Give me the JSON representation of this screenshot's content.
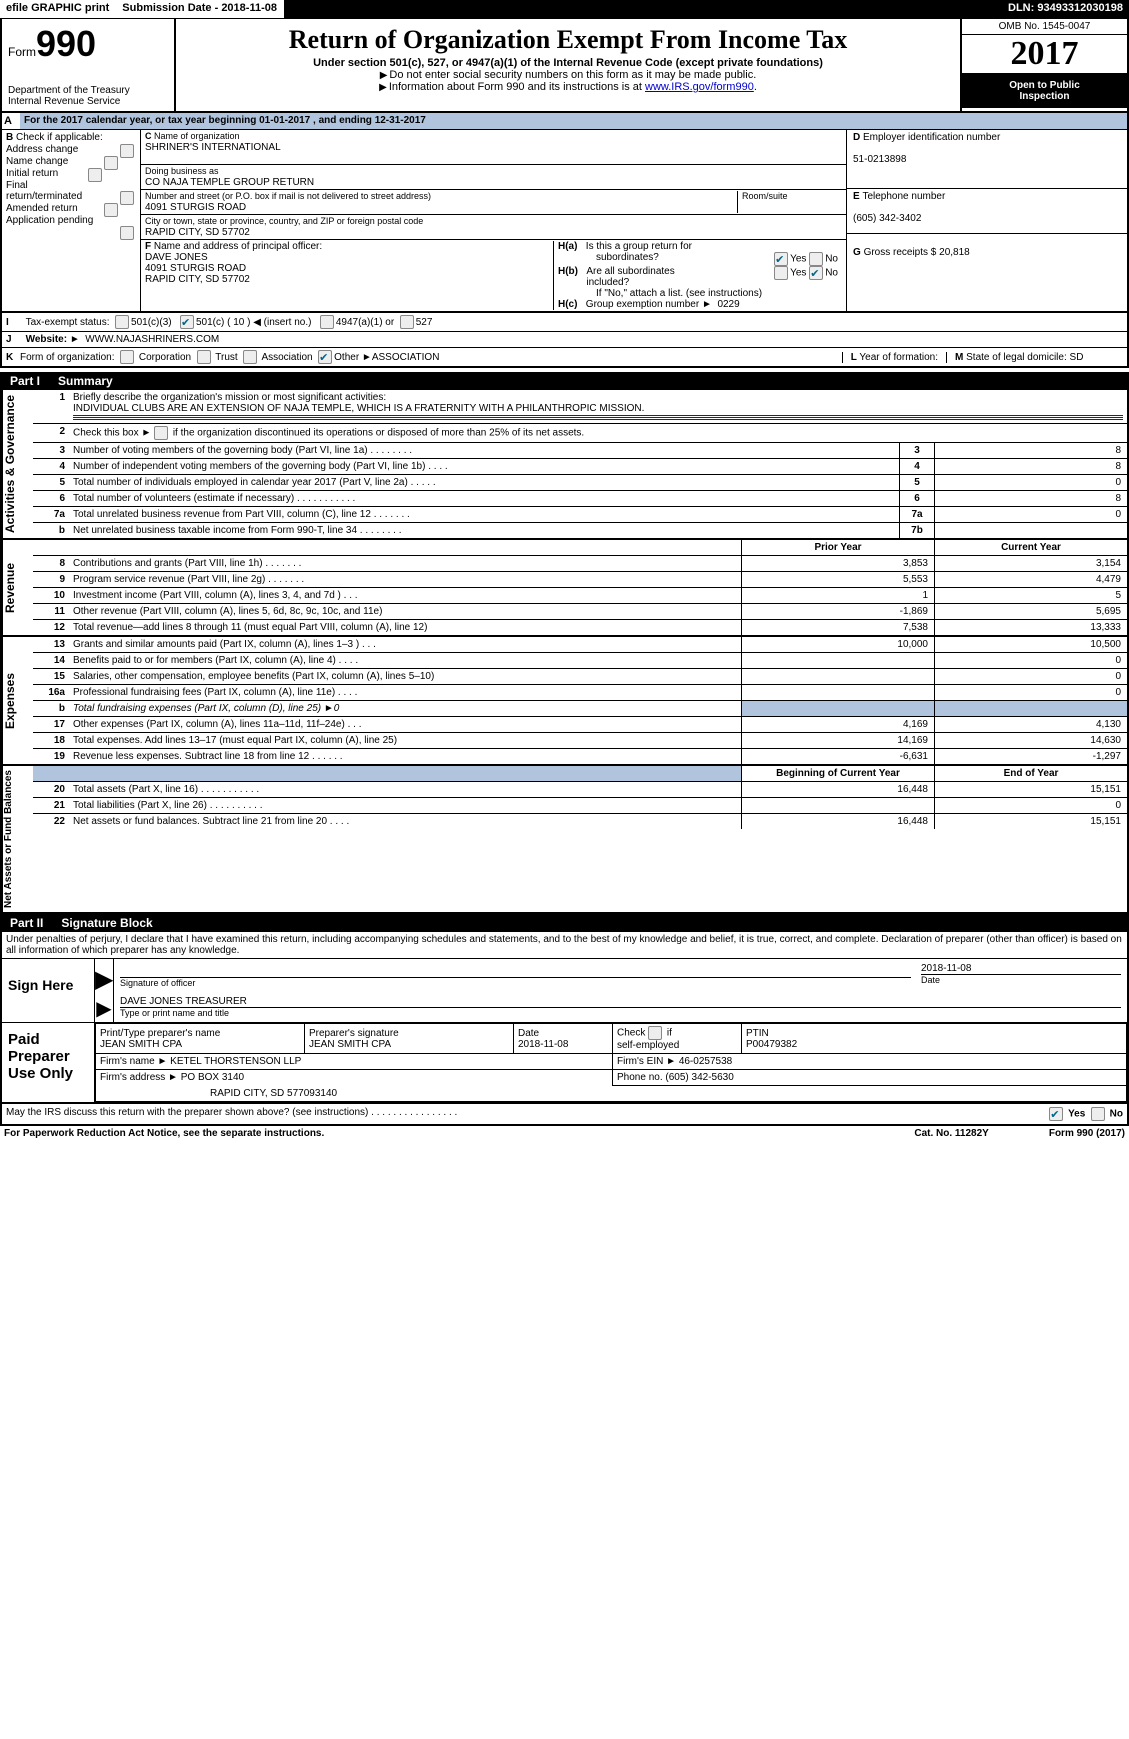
{
  "top_bar": {
    "efile": "efile GRAPHIC print",
    "submission_label": "Submission Date - 2018-11-08",
    "dln": "DLN: 93493312030198"
  },
  "header": {
    "form_word": "Form",
    "form_num": "990",
    "dept1": "Department of the Treasury",
    "dept2": "Internal Revenue Service",
    "title": "Return of Organization Exempt From Income Tax",
    "subtitle": "Under section 501(c), 527, or 4947(a)(1) of the Internal Revenue Code (except private foundations)",
    "note1": "Do not enter social security numbers on this form as it may be made public.",
    "note2_pre": "Information about Form 990 and its instructions is at ",
    "note2_link": "www.IRS.gov/form990",
    "omb": "OMB No. 1545-0047",
    "year": "2017",
    "open1": "Open to Public",
    "open2": "Inspection"
  },
  "line_A": "For the 2017 calendar year, or tax year beginning 01-01-2017        , and ending 12-31-2017",
  "section_B": {
    "title": "Check if applicable:",
    "opts": [
      "Address change",
      "Name change",
      "Initial return",
      "Final return/terminated",
      "Amended return",
      "Application pending"
    ]
  },
  "section_C": {
    "label_name": "Name of organization",
    "name": "SHRINER'S INTERNATIONAL",
    "dba_label": "Doing business as",
    "dba": "CO NAJA TEMPLE GROUP RETURN",
    "street_label": "Number and street (or P.O. box if mail is not delivered to street address)",
    "room_label": "Room/suite",
    "street": "4091 STURGIS ROAD",
    "city_label": "City or town, state or province, country, and ZIP or foreign postal code",
    "city": "RAPID CITY, SD   57702"
  },
  "section_D": {
    "label": "Employer identification number",
    "value": "51-0213898"
  },
  "section_E": {
    "label": "Telephone number",
    "value": "(605) 342-3402"
  },
  "section_G": {
    "label": "Gross receipts $",
    "value": "20,818"
  },
  "section_F": {
    "label": "Name and address of principal officer:",
    "l1": "DAVE JONES",
    "l2": "4091 STURGIS ROAD",
    "l3": "RAPID CITY, SD   57702"
  },
  "section_H": {
    "a_label": "H(a)",
    "a_text": "Is this a group return for",
    "a_text2": "subordinates?",
    "a_yes": "Yes",
    "a_no": "No",
    "b_label": "H(b)",
    "b_text": "Are all subordinates included?",
    "b_yes": "Yes",
    "b_no": "No",
    "b_note": "If \"No,\" attach a list. (see instructions)",
    "c_label": "H(c)",
    "c_text": "Group exemption number ►",
    "c_val": "0229"
  },
  "row_I": {
    "label": "Tax-exempt status:",
    "opt1": "501(c)(3)",
    "opt2": "501(c) ( 10 ) ◀ (insert no.)",
    "opt3": "4947(a)(1) or",
    "opt4": "527"
  },
  "row_J": {
    "label": "Website: ►",
    "value": "WWW.NAJASHRINERS.COM"
  },
  "row_K": {
    "label": "Form of organization:",
    "opts": [
      "Corporation",
      "Trust",
      "Association"
    ],
    "other": "Other ►",
    "other_v": "ASSOCIATION",
    "L": "Year of formation:",
    "L_v": "",
    "M": "State of legal domicile:",
    "M_v": "SD"
  },
  "part1": {
    "tab": "Part I",
    "title": "Summary"
  },
  "gov": {
    "tab": "Activities & Governance",
    "l1": "Briefly describe the organization's mission or most significant activities:",
    "l1v": "INDIVIDUAL CLUBS ARE AN EXTENSION OF NAJA TEMPLE, WHICH IS A FRATERNITY WITH A PHILANTHROPIC MISSION.",
    "l2": "Check this box ►        if the organization discontinued its operations or disposed of more than 25% of its net assets.",
    "l3": "Number of voting members of the governing body (Part VI, line 1a)   .    .    .    .    .    .    .    .",
    "n3": "3",
    "v3": "8",
    "l4": "Number of independent voting members of the governing body (Part VI, line 1b)    .    .    .    .",
    "n4": "4",
    "v4": "8",
    "l5": "Total number of individuals employed in calendar year 2017 (Part V, line 2a)    .    .    .    .    .",
    "n5": "5",
    "v5": "0",
    "l6": "Total number of volunteers (estimate if necessary)    .    .    .    .    .    .    .    .    .    .    .",
    "n6": "6",
    "v6": "8",
    "l7a": "Total unrelated business revenue from Part VIII, column (C), line 12    .    .    .    .    .    .    .",
    "n7a": "7a",
    "v7a": "0",
    "l7b": "Net unrelated business taxable income from Form 990-T, line 34   .    .    .    .    .    .    .    .",
    "n7b": "7b",
    "v7b": ""
  },
  "rev": {
    "tab": "Revenue",
    "head_prior": "Prior Year",
    "head_curr": "Current Year",
    "rows": [
      {
        "n": "8",
        "d": "Contributions and grants (Part VIII, line 1h)   .    .    .    .    .    .    .",
        "p": "3,853",
        "c": "3,154"
      },
      {
        "n": "9",
        "d": "Program service revenue (Part VIII, line 2g)   .    .    .    .    .    .    .",
        "p": "5,553",
        "c": "4,479"
      },
      {
        "n": "10",
        "d": "Investment income (Part VIII, column (A), lines 3, 4, and 7d )    .    .    .",
        "p": "1",
        "c": "5"
      },
      {
        "n": "11",
        "d": "Other revenue (Part VIII, column (A), lines 5, 6d, 8c, 9c, 10c, and 11e)",
        "p": "-1,869",
        "c": "5,695"
      },
      {
        "n": "12",
        "d": "Total revenue—add lines 8 through 11 (must equal Part VIII, column (A), line 12)",
        "p": "7,538",
        "c": "13,333"
      }
    ]
  },
  "exp": {
    "tab": "Expenses",
    "rows": [
      {
        "n": "13",
        "d": "Grants and similar amounts paid (Part IX, column (A), lines 1–3 )    .    .    .",
        "p": "10,000",
        "c": "10,500"
      },
      {
        "n": "14",
        "d": "Benefits paid to or for members (Part IX, column (A), line 4)   .    .    .    .",
        "p": "",
        "c": "0"
      },
      {
        "n": "15",
        "d": "Salaries, other compensation, employee benefits (Part IX, column (A), lines 5–10)",
        "p": "",
        "c": "0"
      },
      {
        "n": "16a",
        "d": "Professional fundraising fees (Part IX, column (A), line 11e)    .    .    .    .",
        "p": "",
        "c": "0"
      },
      {
        "n": "b",
        "d": "Total fundraising expenses (Part IX, column (D), line 25) ►0",
        "p": "SHADE",
        "c": "SHADE"
      },
      {
        "n": "17",
        "d": "Other expenses (Part IX, column (A), lines 11a–11d, 11f–24e)    .    .    .",
        "p": "4,169",
        "c": "4,130"
      },
      {
        "n": "18",
        "d": "Total expenses. Add lines 13–17 (must equal Part IX, column (A), line 25)",
        "p": "14,169",
        "c": "14,630"
      },
      {
        "n": "19",
        "d": "Revenue less expenses. Subtract line 18 from line 12   .    .    .    .    .    .",
        "p": "-6,631",
        "c": "-1,297"
      }
    ]
  },
  "net": {
    "tab": "Net Assets or Fund Balances",
    "head_beg": "Beginning of Current Year",
    "head_end": "End of Year",
    "rows": [
      {
        "n": "20",
        "d": "Total assets (Part X, line 16)   .    .    .    .    .    .    .    .    .    .    .",
        "p": "16,448",
        "c": "15,151"
      },
      {
        "n": "21",
        "d": "Total liabilities (Part X, line 26)   .    .    .    .    .    .    .    .    .    .",
        "p": "",
        "c": "0"
      },
      {
        "n": "22",
        "d": "Net assets or fund balances. Subtract line 21 from line 20    .    .    .    .",
        "p": "16,448",
        "c": "15,151"
      }
    ]
  },
  "part2": {
    "tab": "Part II",
    "title": "Signature Block"
  },
  "declare": "Under penalties of perjury, I declare that I have examined this return, including accompanying schedules and statements, and to the best of my knowledge and belief, it is true, correct, and complete. Declaration of preparer (other than officer) is based on all information of which preparer has any knowledge.",
  "sign": {
    "here": "Sign Here",
    "sig_label": "Signature of officer",
    "date": "2018-11-08",
    "date_label": "Date",
    "name": "DAVE JONES TREASURER",
    "name_label": "Type or print name and title"
  },
  "paid": {
    "here": "Paid Preparer Use Only",
    "h1": "Print/Type preparer's name",
    "v1": "JEAN SMITH CPA",
    "h2": "Preparer's signature",
    "v2": "JEAN SMITH CPA",
    "h3": "Date",
    "v3": "2018-11-08",
    "h4": "Check          if self-employed",
    "h5": "PTIN",
    "v5": "P00479382",
    "firm_l": "Firm's name     ►",
    "firm_v": "KETEL THORSTENSON LLP",
    "ein_l": "Firm's EIN ►",
    "ein_v": "46-0257538",
    "addr_l": "Firm's address ►",
    "addr_v": "PO BOX 3140",
    "addr2": "RAPID CITY, SD   577093140",
    "phone_l": "Phone no.",
    "phone_v": "(605) 342-5630"
  },
  "may": "May the IRS discuss this return with the preparer shown above? (see instructions)    .    .    .    .    .    .    .    .    .    .    .    .    .    .    .    .",
  "may_yes": "Yes",
  "may_no": "No",
  "footer": {
    "l": "For Paperwork Reduction Act Notice, see the separate instructions.",
    "c": "Cat. No. 11282Y",
    "r": "Form 990 (2017)"
  }
}
